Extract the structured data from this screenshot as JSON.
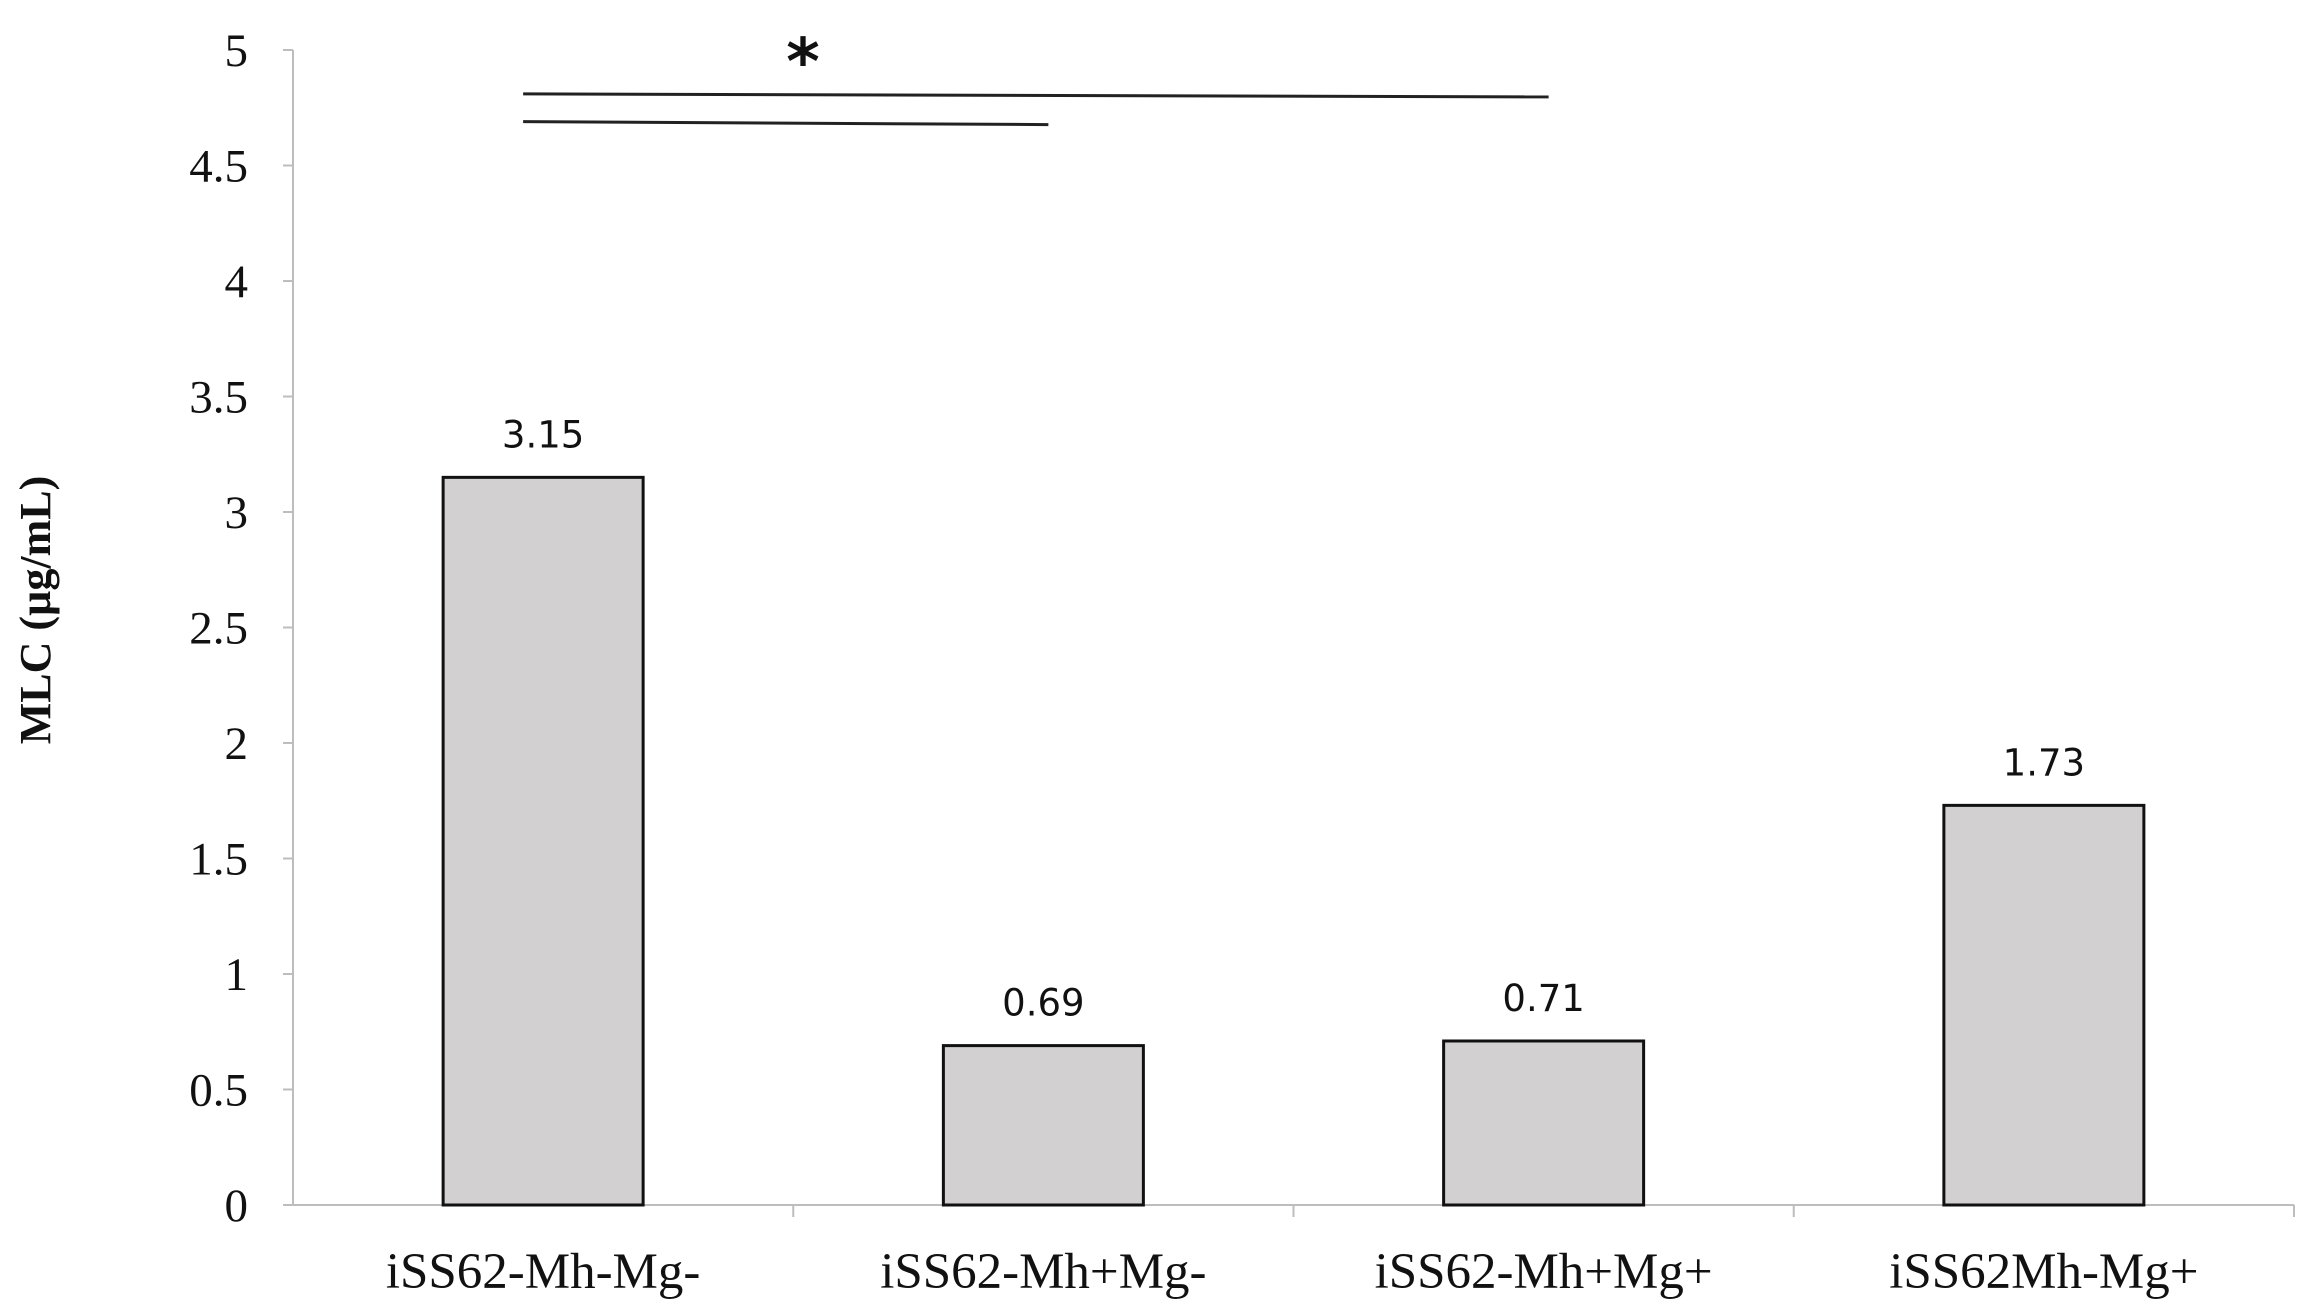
{
  "chart_data": {
    "type": "bar",
    "title": "",
    "xlabel": "",
    "ylabel": "MLC (µg/mL)",
    "ylim": [
      0,
      5
    ],
    "yticks": [
      0,
      0.5,
      1,
      1.5,
      2,
      2.5,
      3,
      3.5,
      4,
      4.5,
      5
    ],
    "ytick_labels": [
      "0",
      "0.5",
      "1",
      "1.5",
      "2",
      "2.5",
      "3",
      "3.5",
      "4",
      "4.5",
      "5"
    ],
    "categories": [
      "iSS62-Mh-Mg-",
      "iSS62-Mh+Mg-",
      "iSS62-Mh+Mg+",
      "iSS62Mh-Mg+"
    ],
    "values": [
      3.15,
      0.69,
      0.71,
      1.73
    ],
    "data_labels": [
      "3.15",
      "0.69",
      "0.71",
      "1.73"
    ],
    "grid": false,
    "bar_color": "#d3d0d1",
    "bar_edge_color": "#111111",
    "significance": [
      {
        "from_category": 0,
        "to_category": 2,
        "y": 4.81
      },
      {
        "from_category": 0,
        "to_category": 1,
        "y": 4.69
      }
    ],
    "annotation": {
      "text": "*",
      "y": 5.06
    }
  }
}
